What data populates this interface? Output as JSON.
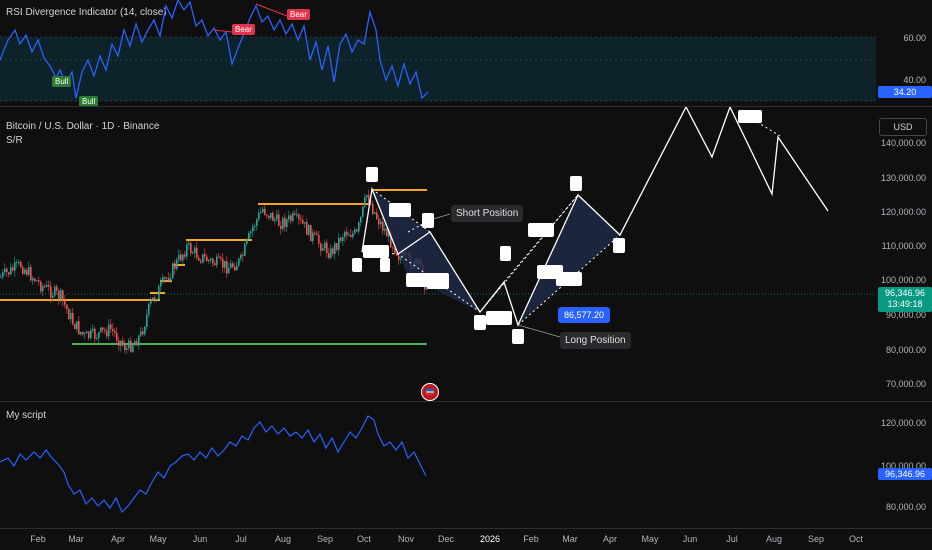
{
  "rsi_pane": {
    "title": "RSI Divergence Indicator (14, close)",
    "axis": [
      "60.00",
      "40.00"
    ],
    "current_value": "34.20",
    "tags": {
      "bull_1": "Bull",
      "bull_2": "Bull",
      "bear_1": "Bear",
      "bear_2": "Bear"
    }
  },
  "main_pane": {
    "symbol": "Bitcoin / U.S. Dollar · 1D · Binance",
    "sr_label": "S/R",
    "currency": "USD",
    "axis": [
      "140,000.00",
      "130,000.00",
      "120,000.00",
      "110,000.00",
      "100,000.00",
      "90,000.00",
      "80,000.00",
      "70,000.00"
    ],
    "price": {
      "value": "96,346.96",
      "countdown": "13:49:18"
    },
    "pattern_price": "86,577.20",
    "short_position_label": "Short Position",
    "long_position_label": "Long Position"
  },
  "script_pane": {
    "title": "My script",
    "axis": [
      "120,000.00",
      "100,000.00",
      "80,000.00"
    ],
    "current_value": "96,346.96"
  },
  "time_axis": [
    "Feb",
    "Mar",
    "Apr",
    "May",
    "Jun",
    "Jul",
    "Aug",
    "Sep",
    "Oct",
    "Nov",
    "Dec",
    "2026",
    "Feb",
    "Mar",
    "Apr",
    "May",
    "Jun",
    "Jul",
    "Aug",
    "Sep",
    "Oct"
  ],
  "colors": {
    "background": "#0f0f0f",
    "rsi_line": "#2962ff",
    "candle_up": "#26a69a",
    "candle_down": "#ef5350",
    "resistance": "#f5a623",
    "support": "#4caf50",
    "price_badge": "#089981",
    "highlight": "#2962ff"
  }
}
